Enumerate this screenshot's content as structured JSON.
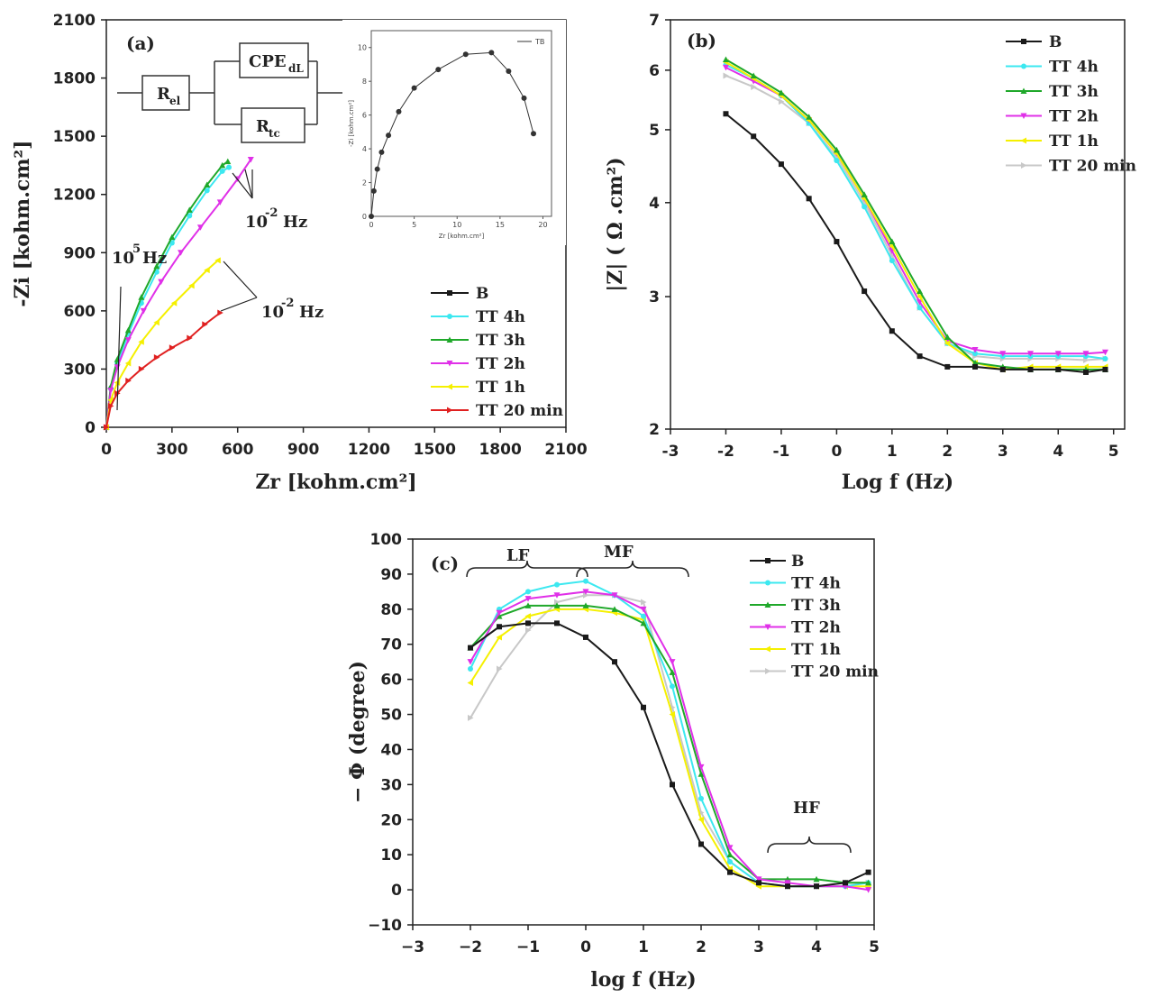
{
  "colors": {
    "B": "#1a1a1a",
    "TT 4h": "#3ce8f0",
    "TT 3h": "#1fa82a",
    "TT 2h": "#e030e8",
    "TT 1h": "#f5f000",
    "TT 20 min": "#c8c8c8",
    "TT 20 min (a)": "#e02020",
    "TT 1h (a)": "#f5f000"
  },
  "chart_data": [
    {
      "id": "a",
      "type": "line",
      "panel_label": "(a)",
      "xlabel": "Zr [kohm.cm²]",
      "ylabel": "-Zi [kohm.cm²]",
      "xlim": [
        0,
        2100
      ],
      "ylim": [
        0,
        2100
      ],
      "xticks": [
        "0",
        "300",
        "600",
        "900",
        "1200",
        "1500",
        "1800",
        "2100"
      ],
      "yticks": [
        "0",
        "300",
        "600",
        "900",
        "1200",
        "1500",
        "1800",
        "2100"
      ],
      "legend": [
        "B",
        "TT 4h",
        "TT 3h",
        "TT 2h",
        "TT 1h",
        "TT 20 min"
      ],
      "circuit": {
        "rel": "R",
        "rel_sub": "el",
        "cpe": "CPE",
        "cpe_sub": "dL",
        "rtc": "R",
        "rtc_sub": "tc"
      },
      "annotations": {
        "hf": "10",
        "hf_sup": "5",
        "hf_unit": "Hz",
        "lf1": "10",
        "lf1_sup": "-2",
        "lf1_unit": "Hz",
        "lf2": "10",
        "lf2_sup": "-2",
        "lf2_unit": "Hz"
      },
      "series": [
        {
          "name": "TT 4h",
          "x": [
            0,
            20,
            50,
            100,
            160,
            230,
            300,
            380,
            460,
            530,
            560
          ],
          "y": [
            0,
            200,
            330,
            480,
            640,
            800,
            950,
            1090,
            1220,
            1320,
            1340
          ]
        },
        {
          "name": "TT 3h",
          "x": [
            0,
            20,
            50,
            100,
            160,
            230,
            300,
            380,
            460,
            530,
            555
          ],
          "y": [
            0,
            210,
            350,
            500,
            670,
            830,
            980,
            1120,
            1250,
            1350,
            1370
          ]
        },
        {
          "name": "TT 2h",
          "x": [
            0,
            20,
            50,
            100,
            170,
            250,
            340,
            430,
            520,
            600,
            660
          ],
          "y": [
            0,
            190,
            310,
            450,
            600,
            750,
            900,
            1030,
            1160,
            1280,
            1380
          ]
        },
        {
          "name": "TT 1h",
          "x": [
            0,
            20,
            50,
            100,
            160,
            230,
            310,
            390,
            460,
            510
          ],
          "y": [
            0,
            140,
            230,
            330,
            440,
            540,
            640,
            730,
            810,
            860
          ]
        },
        {
          "name": "TT 20 min",
          "x": [
            0,
            20,
            50,
            100,
            160,
            230,
            300,
            380,
            450,
            520
          ],
          "y": [
            0,
            110,
            175,
            240,
            300,
            360,
            410,
            460,
            530,
            590
          ]
        }
      ],
      "inset": {
        "legend": "TB",
        "xlabel": "Zr [kohm.cm²]",
        "ylabel": "-Zi [kohm.cm²]",
        "xticks": [
          "0",
          "5",
          "10",
          "15",
          "20"
        ],
        "yticks": [
          "0",
          "2",
          "4",
          "6",
          "8",
          "10"
        ],
        "xlim": [
          0,
          21
        ],
        "ylim": [
          0,
          11
        ],
        "x": [
          0,
          0.3,
          0.7,
          1.2,
          2,
          3.2,
          5,
          7.8,
          11,
          14,
          16,
          17.8,
          18.9
        ],
        "y": [
          0,
          1.5,
          2.8,
          3.8,
          4.8,
          6.2,
          7.6,
          8.7,
          9.6,
          9.7,
          8.6,
          7.0,
          4.9
        ]
      }
    },
    {
      "id": "b",
      "type": "line",
      "panel_label": "(b)",
      "xlabel": "Log f  (Hz)",
      "ylabel": "|Z| ( Ω .cm²)",
      "xlim": [
        -3,
        5.2
      ],
      "ylim": [
        2,
        7
      ],
      "xticks": [
        "-3",
        "-2",
        "-1",
        "0",
        "1",
        "2",
        "3",
        "4",
        "5"
      ],
      "yticks": [
        "2",
        "3",
        "4",
        "5",
        "6",
        "7"
      ],
      "legend": [
        "B",
        "TT  4h",
        "TT  3h",
        "TT  2h",
        "TT  1h",
        "TT 20 min"
      ],
      "x": [
        -2,
        -1.5,
        -1,
        -0.5,
        0,
        0.5,
        1,
        1.5,
        2,
        2.5,
        3,
        3.5,
        4,
        4.5,
        4.85
      ],
      "series": [
        {
          "name": "B",
          "y": [
            5.25,
            4.9,
            4.5,
            4.05,
            3.55,
            3.05,
            2.7,
            2.5,
            2.42,
            2.42,
            2.4,
            2.4,
            2.4,
            2.38,
            2.4
          ]
        },
        {
          "name": "TT 4h",
          "y": [
            6.1,
            5.85,
            5.55,
            5.1,
            4.55,
            3.95,
            3.35,
            2.9,
            2.6,
            2.52,
            2.5,
            2.5,
            2.5,
            2.5,
            2.48
          ]
        },
        {
          "name": "TT 3h",
          "y": [
            6.2,
            5.9,
            5.6,
            5.2,
            4.7,
            4.1,
            3.55,
            3.05,
            2.65,
            2.45,
            2.42,
            2.4,
            2.4,
            2.4,
            2.4
          ]
        },
        {
          "name": "TT 2h",
          "y": [
            6.05,
            5.8,
            5.55,
            5.15,
            4.65,
            4.05,
            3.45,
            2.95,
            2.62,
            2.55,
            2.52,
            2.52,
            2.52,
            2.52,
            2.53
          ]
        },
        {
          "name": "TT 1h",
          "y": [
            6.15,
            5.85,
            5.55,
            5.15,
            4.65,
            4.05,
            3.5,
            3.0,
            2.6,
            2.45,
            2.4,
            2.42,
            2.42,
            2.42,
            2.42
          ]
        },
        {
          "name": "TT 20 min",
          "y": [
            5.9,
            5.7,
            5.45,
            5.1,
            4.6,
            4.0,
            3.4,
            2.9,
            2.6,
            2.5,
            2.48,
            2.48,
            2.48,
            2.47,
            2.48
          ]
        }
      ]
    },
    {
      "id": "c",
      "type": "line",
      "panel_label": "(c)",
      "xlabel": "log f (Hz)",
      "ylabel": "− Φ  (degree)",
      "xlim": [
        -3,
        5
      ],
      "ylim": [
        -10,
        100
      ],
      "xticks": [
        "−3",
        "−2",
        "−1",
        "0",
        "1",
        "2",
        "3",
        "4",
        "5"
      ],
      "yticks": [
        "−10",
        "0",
        "10",
        "20",
        "30",
        "40",
        "50",
        "60",
        "70",
        "80",
        "90",
        "100"
      ],
      "legend": [
        "B",
        "TT 4h",
        "TT 3h",
        "TT 2h",
        "TT 1h",
        "TT 20 min"
      ],
      "regions": [
        "LF",
        "MF",
        "HF"
      ],
      "x": [
        -2,
        -1.5,
        -1,
        -0.5,
        0,
        0.5,
        1,
        1.5,
        2,
        2.5,
        3,
        3.5,
        4,
        4.5,
        4.9
      ],
      "series": [
        {
          "name": "B",
          "y": [
            69,
            75,
            76,
            76,
            72,
            65,
            52,
            30,
            13,
            5,
            2,
            1,
            1,
            2,
            5
          ]
        },
        {
          "name": "TT 4h",
          "y": [
            63,
            80,
            85,
            87,
            88,
            84,
            78,
            58,
            26,
            8,
            2,
            1,
            1,
            1,
            2
          ]
        },
        {
          "name": "TT 3h",
          "y": [
            69,
            78,
            81,
            81,
            81,
            80,
            76,
            62,
            33,
            10,
            3,
            3,
            3,
            2,
            2
          ]
        },
        {
          "name": "TT 2h",
          "y": [
            65,
            79,
            83,
            84,
            85,
            84,
            80,
            65,
            35,
            12,
            3,
            2,
            1,
            1,
            0
          ]
        },
        {
          "name": "TT 1h",
          "y": [
            59,
            72,
            78,
            80,
            80,
            79,
            77,
            50,
            20,
            6,
            1,
            1,
            1,
            1,
            1
          ]
        },
        {
          "name": "TT 20 min",
          "y": [
            49,
            63,
            74,
            82,
            84,
            84,
            82,
            52,
            22,
            8,
            2,
            1,
            1,
            2,
            2
          ]
        }
      ]
    }
  ]
}
